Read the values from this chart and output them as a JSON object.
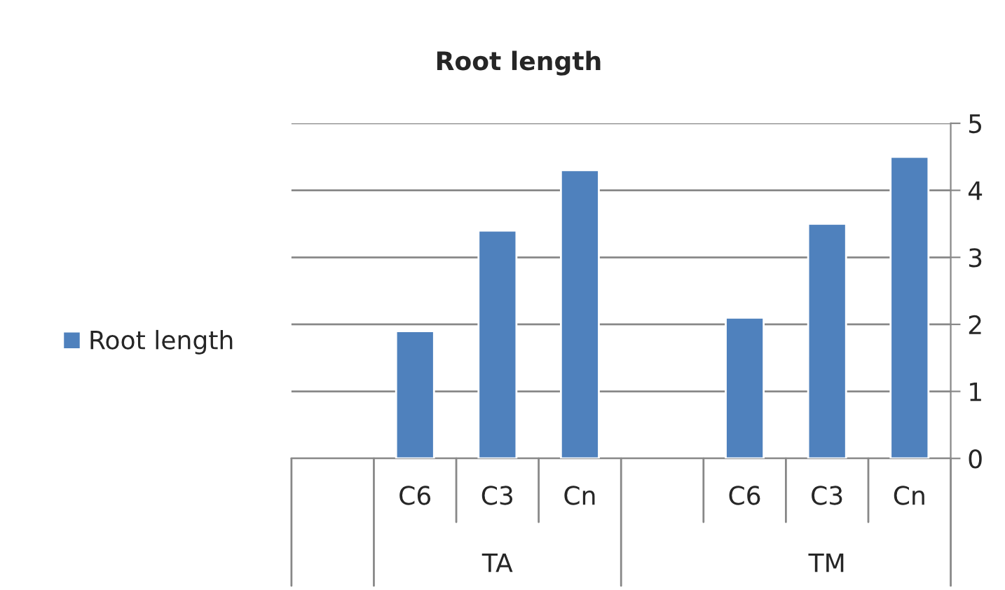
{
  "chart_data": {
    "type": "bar",
    "title": "Root length",
    "categories": [
      null,
      "C6",
      "C3",
      "Cn",
      null,
      "C6",
      "C3",
      "Cn"
    ],
    "series": [
      {
        "name": "Root length",
        "color": "#4f81bd",
        "values": [
          null,
          1.9,
          3.4,
          4.3,
          null,
          2.1,
          3.5,
          4.5
        ]
      }
    ],
    "annotations": [
      "TA",
      "TM"
    ],
    "ylim": [
      0,
      5
    ],
    "yticks": [
      0,
      1,
      2,
      3,
      4,
      5
    ],
    "grid": "y",
    "legend": "left"
  }
}
